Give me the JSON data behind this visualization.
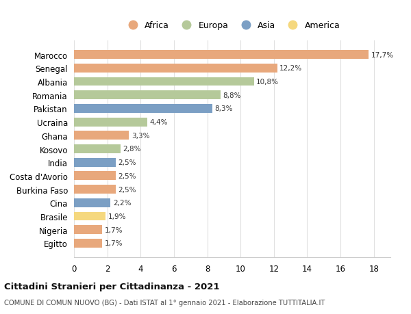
{
  "countries": [
    "Egitto",
    "Nigeria",
    "Brasile",
    "Cina",
    "Burkina Faso",
    "Costa d'Avorio",
    "India",
    "Kosovo",
    "Ghana",
    "Ucraina",
    "Pakistan",
    "Romania",
    "Albania",
    "Senegal",
    "Marocco"
  ],
  "values": [
    1.7,
    1.7,
    1.9,
    2.2,
    2.5,
    2.5,
    2.5,
    2.8,
    3.3,
    4.4,
    8.3,
    8.8,
    10.8,
    12.2,
    17.7
  ],
  "continents": [
    "Africa",
    "Africa",
    "America",
    "Asia",
    "Africa",
    "Africa",
    "Asia",
    "Europa",
    "Africa",
    "Europa",
    "Asia",
    "Europa",
    "Europa",
    "Africa",
    "Africa"
  ],
  "colors": {
    "Africa": "#E8A87C",
    "Europa": "#B5C99A",
    "Asia": "#7B9FC4",
    "America": "#F5D87E"
  },
  "legend_order": [
    "Africa",
    "Europa",
    "Asia",
    "America"
  ],
  "title": "Cittadini Stranieri per Cittadinanza - 2021",
  "subtitle": "COMUNE DI COMUN NUOVO (BG) - Dati ISTAT al 1° gennaio 2021 - Elaborazione TUTTITALIA.IT",
  "xlim": [
    0,
    19
  ],
  "xticks": [
    0,
    2,
    4,
    6,
    8,
    10,
    12,
    14,
    16,
    18
  ],
  "background_color": "#ffffff",
  "grid_color": "#e0e0e0"
}
